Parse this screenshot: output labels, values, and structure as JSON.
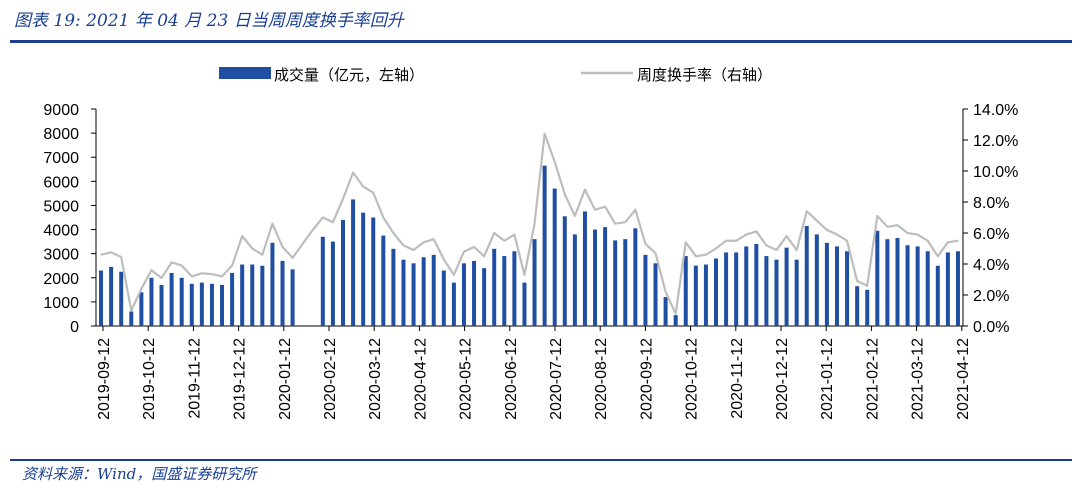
{
  "header": {
    "title": "图表 19:  2021 年 04 月 23 日当周周度换手率回升"
  },
  "footer": {
    "source": "资料来源：Wind，国盛证券研究所"
  },
  "colors": {
    "bar": "#1f4ea3",
    "line": "#bdbdbd",
    "rule": "#1a3f95"
  },
  "chart_data": {
    "type": "bar",
    "title": "",
    "legend": [
      "成交量（亿元，左轴）",
      "周度换手率（右轴）"
    ],
    "legend_placement": "top",
    "y_left": {
      "min": 0,
      "max": 9000,
      "ticks": [
        "0",
        "1000",
        "2000",
        "3000",
        "4000",
        "5000",
        "6000",
        "7000",
        "8000",
        "9000"
      ]
    },
    "y_right": {
      "min": 0,
      "max": 14,
      "ticks": [
        "0.0%",
        "2.0%",
        "4.0%",
        "6.0%",
        "8.0%",
        "10.0%",
        "12.0%",
        "14.0%"
      ]
    },
    "x_tick_labels": [
      "2019-09-12",
      "2019-10-12",
      "2019-11-12",
      "2019-12-12",
      "2020-01-12",
      "2020-02-12",
      "2020-03-12",
      "2020-04-12",
      "2020-05-12",
      "2020-06-12",
      "2020-07-12",
      "2020-08-12",
      "2020-09-12",
      "2020-10-12",
      "2020-11-12",
      "2020-12-12",
      "2021-01-12",
      "2021-02-12",
      "2021-03-12",
      "2021-04-12"
    ],
    "series": [
      {
        "name": "成交量（亿元，左轴）",
        "type": "bar",
        "values": [
          2300,
          2450,
          2250,
          600,
          1400,
          2000,
          1700,
          2200,
          2000,
          1750,
          1800,
          1750,
          1700,
          2200,
          2550,
          2550,
          2500,
          3450,
          2700,
          2350,
          null,
          null,
          3700,
          3500,
          4400,
          5250,
          4700,
          4500,
          3750,
          3200,
          2750,
          2600,
          2850,
          2950,
          2300,
          1800,
          2600,
          2700,
          2400,
          3200,
          2900,
          3100,
          1800,
          3600,
          6650,
          5700,
          4550,
          3800,
          4750,
          4000,
          4100,
          3550,
          3600,
          4050,
          2950,
          2600,
          1200,
          450,
          2900,
          2500,
          2550,
          2800,
          3050,
          3050,
          3300,
          3400,
          2900,
          2750,
          3250,
          2750,
          4150,
          3800,
          3450,
          3300,
          3100,
          1650,
          1500,
          3950,
          3600,
          3650,
          3350,
          3300,
          3100,
          2500,
          3050,
          3100
        ]
      },
      {
        "name": "周度换手率（右轴）",
        "type": "line",
        "values": [
          4.6,
          4.75,
          4.45,
          1.0,
          2.4,
          3.6,
          3.1,
          4.1,
          3.9,
          3.2,
          3.4,
          3.35,
          3.2,
          3.9,
          5.8,
          5.0,
          4.6,
          6.6,
          5.1,
          4.4,
          5.3,
          6.2,
          7.0,
          6.7,
          8.2,
          9.9,
          9.0,
          8.6,
          7.0,
          6.0,
          5.2,
          4.9,
          5.4,
          5.6,
          4.3,
          3.3,
          4.8,
          5.1,
          4.5,
          6.0,
          5.5,
          5.9,
          3.3,
          6.6,
          12.4,
          10.6,
          8.5,
          7.1,
          8.8,
          7.5,
          7.7,
          6.6,
          6.7,
          7.5,
          5.3,
          4.7,
          2.2,
          0.8,
          5.4,
          4.5,
          4.6,
          5.0,
          5.5,
          5.5,
          5.9,
          6.1,
          5.2,
          4.9,
          5.8,
          4.9,
          7.4,
          6.8,
          6.2,
          5.9,
          5.5,
          2.9,
          2.6,
          7.1,
          6.4,
          6.5,
          6.0,
          5.9,
          5.5,
          4.5,
          5.4,
          5.5
        ]
      }
    ]
  }
}
